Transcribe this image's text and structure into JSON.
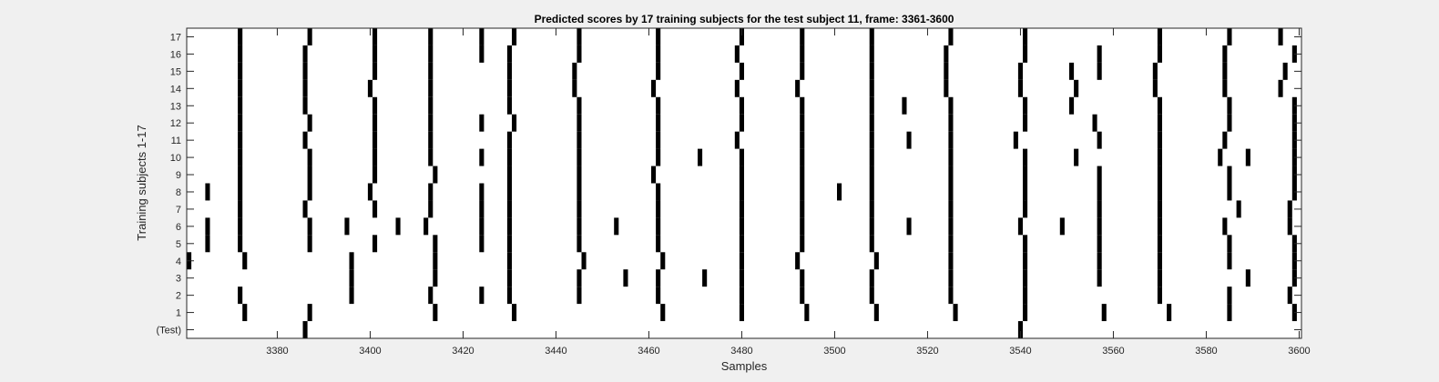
{
  "chart_data": {
    "type": "raster",
    "title": "Predicted scores by 17 training subjects for the test subject 11, frame: 3361-3600",
    "xlabel": "Samples",
    "ylabel": "Training subjects 1-17",
    "xlim": [
      3361,
      3600
    ],
    "xticks": [
      3380,
      3400,
      3420,
      3440,
      3460,
      3480,
      3500,
      3520,
      3540,
      3560,
      3580,
      3600
    ],
    "yticklabels": [
      "(Test)",
      "1",
      "2",
      "3",
      "4",
      "5",
      "6",
      "7",
      "8",
      "9",
      "10",
      "11",
      "12",
      "13",
      "14",
      "15",
      "16",
      "17"
    ],
    "mark_color": "#000000",
    "rows": [
      {
        "label": "(Test)",
        "x": [
          3386,
          3540
        ]
      },
      {
        "label": "1",
        "x": [
          3373,
          3387,
          3414,
          3431,
          3463,
          3480,
          3494,
          3509,
          3526,
          3541,
          3558,
          3572,
          3585,
          3599
        ]
      },
      {
        "label": "2",
        "x": [
          3372,
          3396,
          3413,
          3424,
          3430,
          3445,
          3462,
          3480,
          3493,
          3508,
          3525,
          3541,
          3570,
          3585,
          3598
        ]
      },
      {
        "label": "3",
        "x": [
          3396,
          3414,
          3430,
          3445,
          3455,
          3462,
          3472,
          3480,
          3493,
          3508,
          3525,
          3541,
          3557,
          3570,
          3589,
          3599
        ]
      },
      {
        "label": "4",
        "x": [
          3361,
          3373,
          3396,
          3414,
          3430,
          3446,
          3463,
          3480,
          3492,
          3509,
          3525,
          3541,
          3557,
          3570,
          3585,
          3599
        ]
      },
      {
        "label": "5",
        "x": [
          3365,
          3372,
          3387,
          3401,
          3414,
          3424,
          3430,
          3445,
          3462,
          3480,
          3493,
          3508,
          3525,
          3541,
          3557,
          3570,
          3585,
          3599
        ]
      },
      {
        "label": "6",
        "x": [
          3365,
          3372,
          3387,
          3395,
          3406,
          3412,
          3424,
          3430,
          3445,
          3453,
          3462,
          3480,
          3493,
          3508,
          3516,
          3525,
          3540,
          3549,
          3557,
          3570,
          3584,
          3598
        ]
      },
      {
        "label": "7",
        "x": [
          3372,
          3386,
          3401,
          3413,
          3424,
          3430,
          3445,
          3462,
          3480,
          3493,
          3508,
          3525,
          3541,
          3557,
          3570,
          3587,
          3598
        ]
      },
      {
        "label": "8",
        "x": [
          3365,
          3372,
          3387,
          3400,
          3413,
          3424,
          3430,
          3445,
          3462,
          3480,
          3493,
          3501,
          3508,
          3525,
          3541,
          3557,
          3570,
          3585,
          3599
        ]
      },
      {
        "label": "9",
        "x": [
          3372,
          3387,
          3401,
          3414,
          3430,
          3445,
          3461,
          3480,
          3493,
          3508,
          3525,
          3541,
          3557,
          3570,
          3585,
          3599
        ]
      },
      {
        "label": "10",
        "x": [
          3372,
          3387,
          3401,
          3413,
          3424,
          3430,
          3445,
          3462,
          3471,
          3480,
          3493,
          3508,
          3525,
          3541,
          3552,
          3570,
          3583,
          3589,
          3599
        ]
      },
      {
        "label": "11",
        "x": [
          3372,
          3386,
          3401,
          3413,
          3430,
          3445,
          3462,
          3479,
          3493,
          3508,
          3516,
          3525,
          3539,
          3557,
          3570,
          3584,
          3599
        ]
      },
      {
        "label": "12",
        "x": [
          3372,
          3387,
          3401,
          3413,
          3424,
          3431,
          3445,
          3462,
          3480,
          3493,
          3508,
          3525,
          3541,
          3556,
          3570,
          3585,
          3599
        ]
      },
      {
        "label": "13",
        "x": [
          3372,
          3386,
          3401,
          3413,
          3430,
          3445,
          3462,
          3480,
          3493,
          3508,
          3515,
          3525,
          3541,
          3551,
          3570,
          3585,
          3599
        ]
      },
      {
        "label": "14",
        "x": [
          3372,
          3386,
          3400,
          3413,
          3430,
          3444,
          3461,
          3479,
          3492,
          3508,
          3524,
          3540,
          3552,
          3569,
          3584,
          3596
        ]
      },
      {
        "label": "15",
        "x": [
          3372,
          3386,
          3401,
          3413,
          3430,
          3444,
          3462,
          3480,
          3493,
          3508,
          3524,
          3540,
          3551,
          3557,
          3569,
          3584,
          3597
        ]
      },
      {
        "label": "16",
        "x": [
          3372,
          3386,
          3401,
          3413,
          3424,
          3430,
          3445,
          3462,
          3479,
          3493,
          3508,
          3524,
          3541,
          3557,
          3570,
          3584,
          3599
        ]
      },
      {
        "label": "17",
        "x": [
          3372,
          3387,
          3401,
          3413,
          3424,
          3431,
          3445,
          3462,
          3480,
          3493,
          3508,
          3525,
          3541,
          3570,
          3585,
          3596
        ]
      }
    ]
  }
}
